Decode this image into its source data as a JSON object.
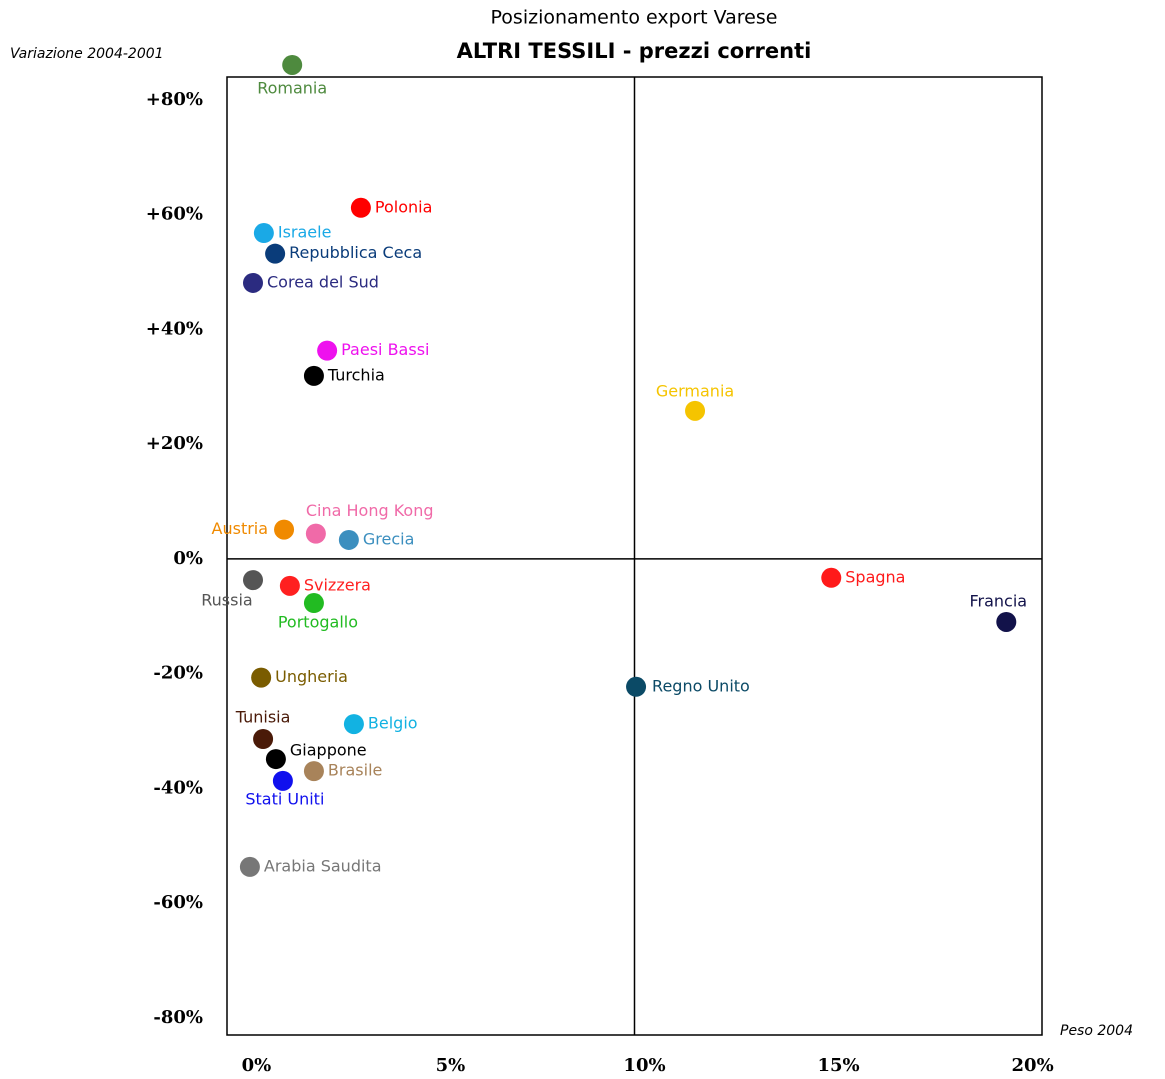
{
  "chart_data": {
    "type": "scatter",
    "title": "Posizionamento export Varese",
    "subtitle": "ALTRI TESSILI - prezzi correnti",
    "y_label": "Variazione 2004-2001",
    "x_label": "Peso 2004",
    "xlim": [
      -0.5,
      20.5
    ],
    "ylim": [
      -83,
      84
    ],
    "xticks": [
      {
        "value": 0,
        "label": "0%"
      },
      {
        "value": 5,
        "label": "5%"
      },
      {
        "value": 10,
        "label": "10%"
      },
      {
        "value": 15,
        "label": "15%"
      },
      {
        "value": 20,
        "label": "20%"
      }
    ],
    "yticks": [
      {
        "value": 80,
        "label": "+80%"
      },
      {
        "value": 60,
        "label": "+60%"
      },
      {
        "value": 40,
        "label": "+40%"
      },
      {
        "value": 20,
        "label": "+20%"
      },
      {
        "value": 0,
        "label": "0%"
      },
      {
        "value": -20,
        "label": "-20%"
      },
      {
        "value": -40,
        "label": "-40%"
      },
      {
        "value": -60,
        "label": "-60%"
      },
      {
        "value": -80,
        "label": "-80%"
      }
    ],
    "quadrant_lines": {
      "x": 10,
      "y": 0
    },
    "series": [
      {
        "name": "Romania",
        "color": "#4e8a3e",
        "x": 1.18,
        "y": 86.1
      },
      {
        "name": "Polonia",
        "color": "#ff0000",
        "x": 2.95,
        "y": 61.2
      },
      {
        "name": "Israele",
        "color": "#1aa9e6",
        "x": 0.45,
        "y": 56.8
      },
      {
        "name": "Repubblica Ceca",
        "color": "#0a3c7a",
        "x": 0.74,
        "y": 53.2
      },
      {
        "name": "Corea del Sud",
        "color": "#2b2b80",
        "x": 0.17,
        "y": 48.1
      },
      {
        "name": "Paesi Bassi",
        "color": "#ee11ee",
        "x": 2.08,
        "y": 36.3
      },
      {
        "name": "Turchia",
        "color": "#000000",
        "x": 1.74,
        "y": 31.9
      },
      {
        "name": "Germania",
        "color": "#f5c400",
        "x": 11.56,
        "y": 25.8
      },
      {
        "name": "Austria",
        "color": "#f08a00",
        "x": 0.97,
        "y": 5.1
      },
      {
        "name": "Cina Hong Kong",
        "color": "#f06aa8",
        "x": 1.79,
        "y": 4.4
      },
      {
        "name": "Grecia",
        "color": "#3c8fbf",
        "x": 2.64,
        "y": 3.3
      },
      {
        "name": "Russia",
        "color": "#555555",
        "x": 0.17,
        "y": -3.7
      },
      {
        "name": "Svizzera",
        "color": "#ff2020",
        "x": 1.12,
        "y": -4.7
      },
      {
        "name": "Portogallo",
        "color": "#22bb22",
        "x": 1.74,
        "y": -7.7
      },
      {
        "name": "Spagna",
        "color": "#ff1a1a",
        "x": 15.07,
        "y": -3.3
      },
      {
        "name": "Francia",
        "color": "#12124a",
        "x": 19.58,
        "y": -11.0
      },
      {
        "name": "Ungheria",
        "color": "#7a5c00",
        "x": 0.38,
        "y": -20.7
      },
      {
        "name": "Regno Unito",
        "color": "#0b4a66",
        "x": 10.04,
        "y": -22.3
      },
      {
        "name": "Belgio",
        "color": "#12b2e2",
        "x": 2.77,
        "y": -28.8
      },
      {
        "name": "Tunisia",
        "color": "#4a1a08",
        "x": 0.43,
        "y": -31.4
      },
      {
        "name": "Giappone",
        "color": "#000000",
        "x": 0.76,
        "y": -34.9
      },
      {
        "name": "Brasile",
        "color": "#a8835a",
        "x": 1.74,
        "y": -37.0
      },
      {
        "name": "Stati Uniti",
        "color": "#1010ee",
        "x": 0.94,
        "y": -38.7
      },
      {
        "name": "Arabia Saudita",
        "color": "#777777",
        "x": 0.09,
        "y": -53.7
      }
    ]
  }
}
